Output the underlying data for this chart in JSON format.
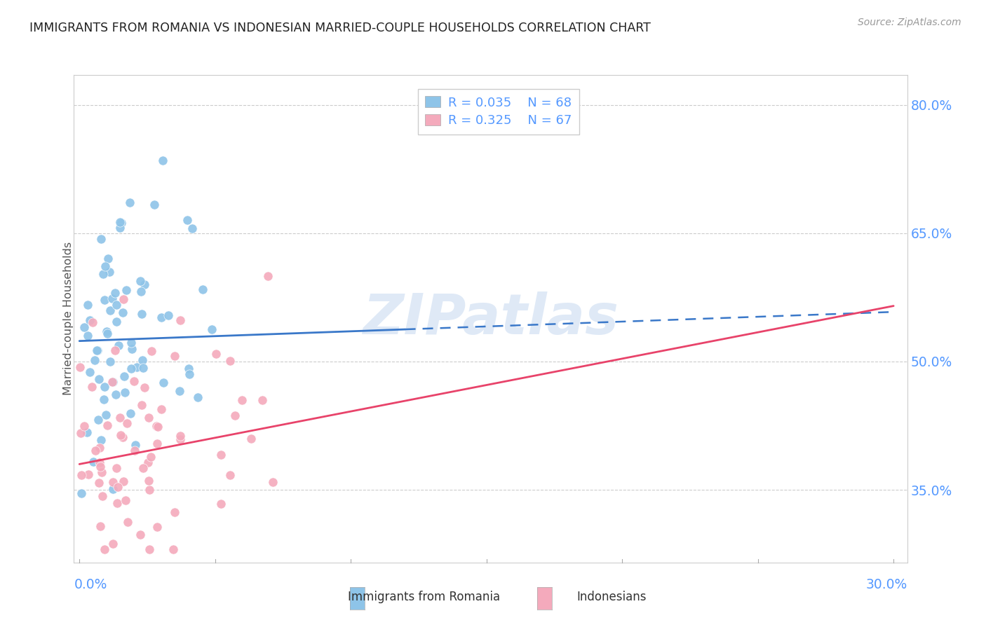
{
  "title": "IMMIGRANTS FROM ROMANIA VS INDONESIAN MARRIED-COUPLE HOUSEHOLDS CORRELATION CHART",
  "source": "Source: ZipAtlas.com",
  "ylabel": "Married-couple Households",
  "ylim": [
    0.265,
    0.835
  ],
  "xlim": [
    -0.002,
    0.305
  ],
  "legend_romania_r": "R = 0.035",
  "legend_romania_n": "N = 68",
  "legend_indonesian_r": "R = 0.325",
  "legend_indonesian_n": "N = 67",
  "color_romania": "#8ec4e8",
  "color_indonesian": "#f4aabc",
  "color_trend_romania": "#3a78c9",
  "color_trend_indonesian": "#e8436a",
  "color_axis_labels": "#5599ff",
  "color_title": "#333333",
  "watermark": "ZIPatlas",
  "ytick_positions": [
    0.8,
    0.65,
    0.5,
    0.35
  ],
  "ytick_labels": [
    "80.0%",
    "65.0%",
    "50.0%",
    "35.0%"
  ],
  "background_color": "#ffffff",
  "grid_color": "#cccccc",
  "trend_romania_x0": 0.0,
  "trend_romania_y0": 0.524,
  "trend_romania_x1": 0.3,
  "trend_romania_y1": 0.558,
  "trend_indonesian_x0": 0.0,
  "trend_indonesian_y0": 0.38,
  "trend_indonesian_x1": 0.3,
  "trend_indonesian_y1": 0.565
}
